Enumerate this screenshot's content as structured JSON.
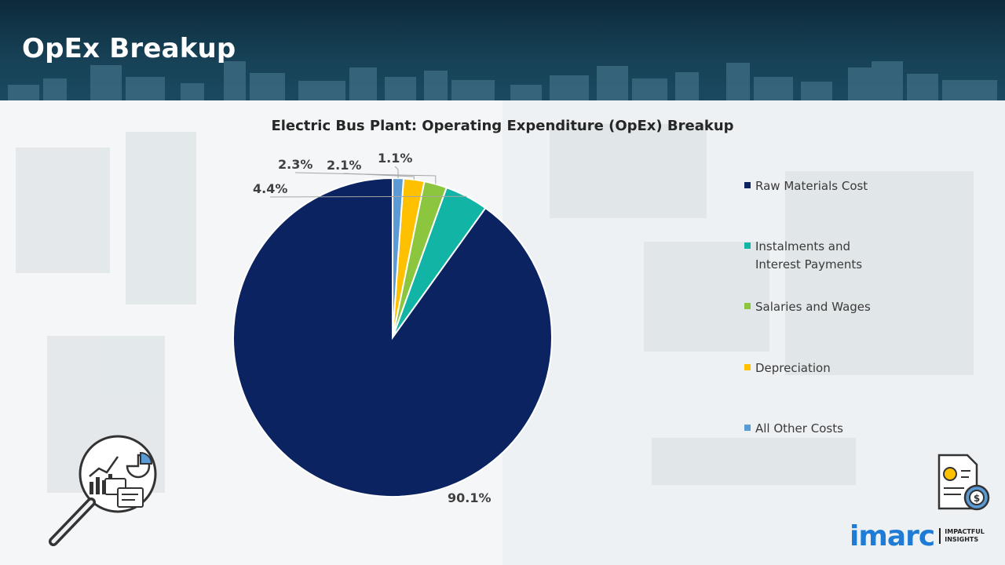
{
  "header": {
    "title": "OpEx Breakup"
  },
  "colors": {
    "raw_materials": "#0b2461",
    "instalments": "#12b4a6",
    "salaries": "#8cc63f",
    "depreciation": "#ffc000",
    "other": "#5b9bd5"
  },
  "icons": {
    "left": "magnifier-analytics-icon",
    "right": "invoice-dollar-gear-icon"
  },
  "brand": {
    "name": "imarc",
    "tagline": [
      "IMPACTFUL",
      "INSIGHTS"
    ]
  },
  "chart_data": {
    "type": "pie",
    "title": "Electric Bus Plant: Operating Expenditure (OpEx) Breakup",
    "legend_position": "right",
    "slices": [
      {
        "label": "Raw Materials Cost",
        "value": 90.1,
        "display": "90.1%",
        "color": "#0b2461"
      },
      {
        "label": "Instalments and Interest Payments",
        "value": 4.4,
        "display": "4.4%",
        "color": "#12b4a6"
      },
      {
        "label": "Salaries and Wages",
        "value": 2.3,
        "display": "2.3%",
        "color": "#8cc63f"
      },
      {
        "label": "Depreciation",
        "value": 2.1,
        "display": "2.1%",
        "color": "#ffc000"
      },
      {
        "label": "All Other Costs",
        "value": 1.1,
        "display": "1.1%",
        "color": "#5b9bd5"
      }
    ]
  }
}
